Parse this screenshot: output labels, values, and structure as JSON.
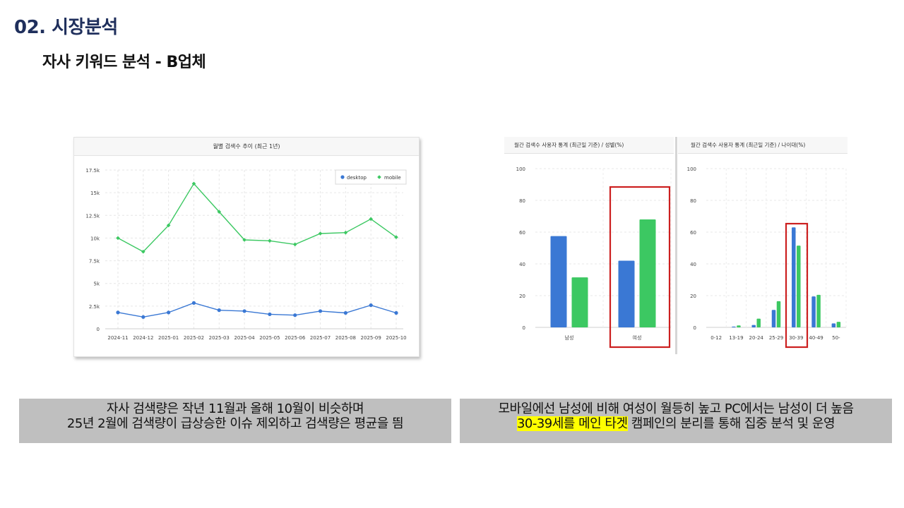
{
  "header": {
    "section_title": "02. 시장분석",
    "sub_title": "자사 키워드 분석 - B업체"
  },
  "monthly_chart": {
    "title": "월별 검색수 추이 (최근 1년)"
  },
  "gender_chart": {
    "title": "월간 검색수 사용자 통계 (최근일 기준) / 성별(%)"
  },
  "age_chart": {
    "title": "월간 검색수 사용자 통계 (최근일 기준) / 나이대(%)"
  },
  "captions": {
    "left_line1": "자사 검색량은 작년 11월과 올해 10월이 비슷하며",
    "left_line2": "25년 2월에 검색량이 급상승한 이슈 제외하고 검색량은 평균을 띔",
    "right_line1": "모바일에선 남성에 비해 여성이 월등히 높고 PC에서는 남성이 더 높음",
    "right_line2_highlight": "30-39세를 메인 타겟",
    "right_line2_rest": " 캠페인의 분리를 통해 집중 분석 및 운영"
  },
  "colors": {
    "desktop": "#3a78d4",
    "mobile": "#3cc862",
    "highlight_box": "#cc1f1f",
    "title_navy": "#1f2f5c"
  },
  "chart_data": [
    {
      "type": "line",
      "categories": [
        "2024-11",
        "2024-12",
        "2025-01",
        "2025-02",
        "2025-03",
        "2025-04",
        "2025-05",
        "2025-06",
        "2025-07",
        "2025-08",
        "2025-09",
        "2025-10"
      ],
      "series": [
        {
          "name": "desktop",
          "values": [
            1800,
            1300,
            1800,
            2850,
            2050,
            1950,
            1600,
            1500,
            1950,
            1750,
            2600,
            1750
          ]
        },
        {
          "name": "mobile",
          "values": [
            10000,
            8500,
            11400,
            16000,
            12900,
            9800,
            9700,
            9300,
            10500,
            10600,
            12100,
            10100
          ]
        }
      ],
      "ylim": [
        0,
        17500
      ],
      "yticks": [
        "0",
        "2.5k",
        "5k",
        "7.5k",
        "10k",
        "12.5k",
        "15k",
        "17.5k"
      ],
      "grid": true,
      "legend_position": "top-right"
    },
    {
      "type": "bar",
      "categories": [
        "남성",
        "여성"
      ],
      "series": [
        {
          "values": [
            57.5,
            42
          ]
        },
        {
          "values": [
            31.5,
            68
          ]
        }
      ],
      "ylim": [
        0,
        100
      ],
      "yticks": [
        "0",
        "20",
        "40",
        "60",
        "80",
        "100"
      ],
      "grid": true
    },
    {
      "type": "bar",
      "categories": [
        "0-12",
        "13-19",
        "20-24",
        "25-29",
        "30-39",
        "40-49",
        "50-"
      ],
      "series": [
        {
          "values": [
            0,
            0.5,
            1.5,
            11,
            63,
            19.5,
            2.5
          ]
        },
        {
          "values": [
            0,
            1.2,
            5.5,
            16.5,
            51.5,
            20.5,
            3.5
          ]
        }
      ],
      "ylim": [
        0,
        100
      ],
      "yticks": [
        "0",
        "20",
        "40",
        "60",
        "80",
        "100"
      ],
      "grid": true
    }
  ]
}
